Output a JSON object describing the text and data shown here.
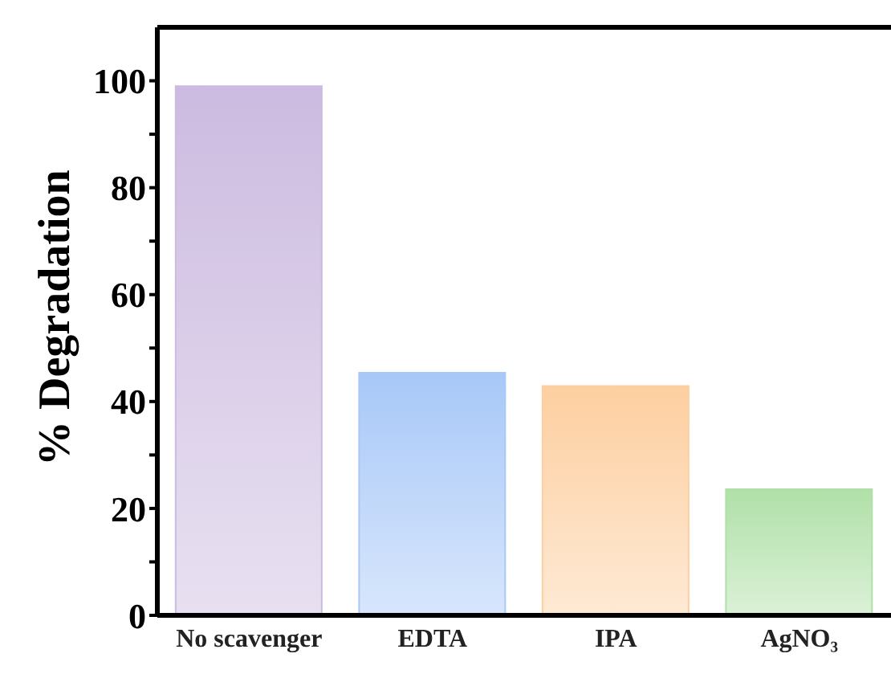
{
  "chart_data": {
    "type": "bar",
    "ylabel": "% Degradation",
    "categories": [
      "No scavenger",
      "EDTA",
      "IPA",
      "AgNO₃"
    ],
    "values": [
      99.0,
      45.4,
      42.9,
      23.6
    ],
    "colors": [
      "#ccbbe0",
      "#a8c8f8",
      "#fdcfa0",
      "#b0e0a8"
    ],
    "ylim": [
      0,
      110
    ],
    "yticks": [
      0,
      {
        "value": 10,
        "label": null
      },
      20,
      {
        "value": 30,
        "label": null
      },
      40,
      {
        "value": 50,
        "label": null
      },
      60,
      {
        "value": 70,
        "label": null
      },
      80,
      {
        "value": 90,
        "label": null
      },
      100
    ],
    "grid": false,
    "legend": false
  }
}
